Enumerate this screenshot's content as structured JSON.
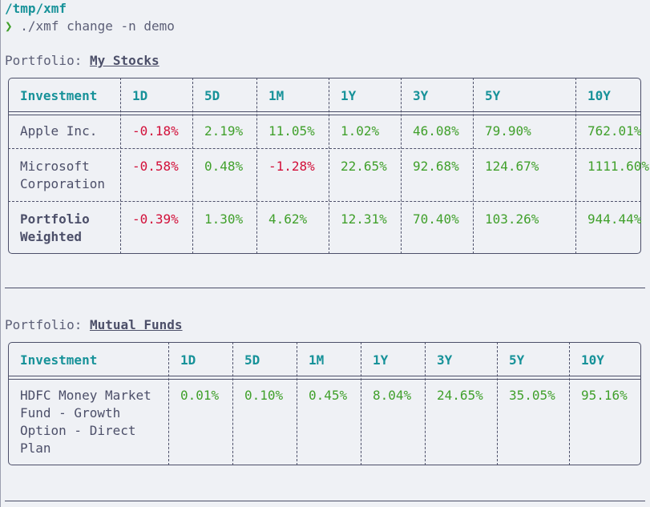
{
  "terminal": {
    "cwd": "/tmp/xmf",
    "prompt_symbol": "❯",
    "command": "./xmf change -n demo",
    "portfolio_label": "Portfolio: "
  },
  "portfolios": [
    {
      "name": "My Stocks",
      "headers": [
        "Investment",
        "1D",
        "5D",
        "1M",
        "1Y",
        "3Y",
        "5Y",
        "10Y"
      ],
      "rows": [
        {
          "name": [
            "Apple Inc."
          ],
          "values": [
            "-0.18%",
            "2.19%",
            "11.05%",
            "1.02%",
            "46.08%",
            "79.90%",
            "762.01%"
          ]
        },
        {
          "name": [
            "Microsoft",
            "Corporation"
          ],
          "values": [
            "-0.58%",
            "0.48%",
            "-1.28%",
            "22.65%",
            "92.68%",
            "124.67%",
            "1111.60%"
          ]
        },
        {
          "name": [
            "Portfolio",
            "Weighted"
          ],
          "values": [
            "-0.39%",
            "1.30%",
            "4.62%",
            "12.31%",
            "70.40%",
            "103.26%",
            "944.44%"
          ]
        }
      ]
    },
    {
      "name": "Mutual Funds",
      "headers": [
        "Investment",
        "1D",
        "5D",
        "1M",
        "1Y",
        "3Y",
        "5Y",
        "10Y"
      ],
      "rows": [
        {
          "name": [
            "HDFC Money Market",
            "Fund - Growth",
            "Option - Direct",
            "Plan"
          ],
          "values": [
            "0.01%",
            "0.10%",
            "0.45%",
            "8.04%",
            "24.65%",
            "35.05%",
            "95.16%"
          ]
        }
      ]
    }
  ],
  "colors": {
    "background": "#eff1f5",
    "text": "#4c4f69",
    "header": "#179299",
    "positive": "#40a02b",
    "negative": "#d20f39"
  }
}
